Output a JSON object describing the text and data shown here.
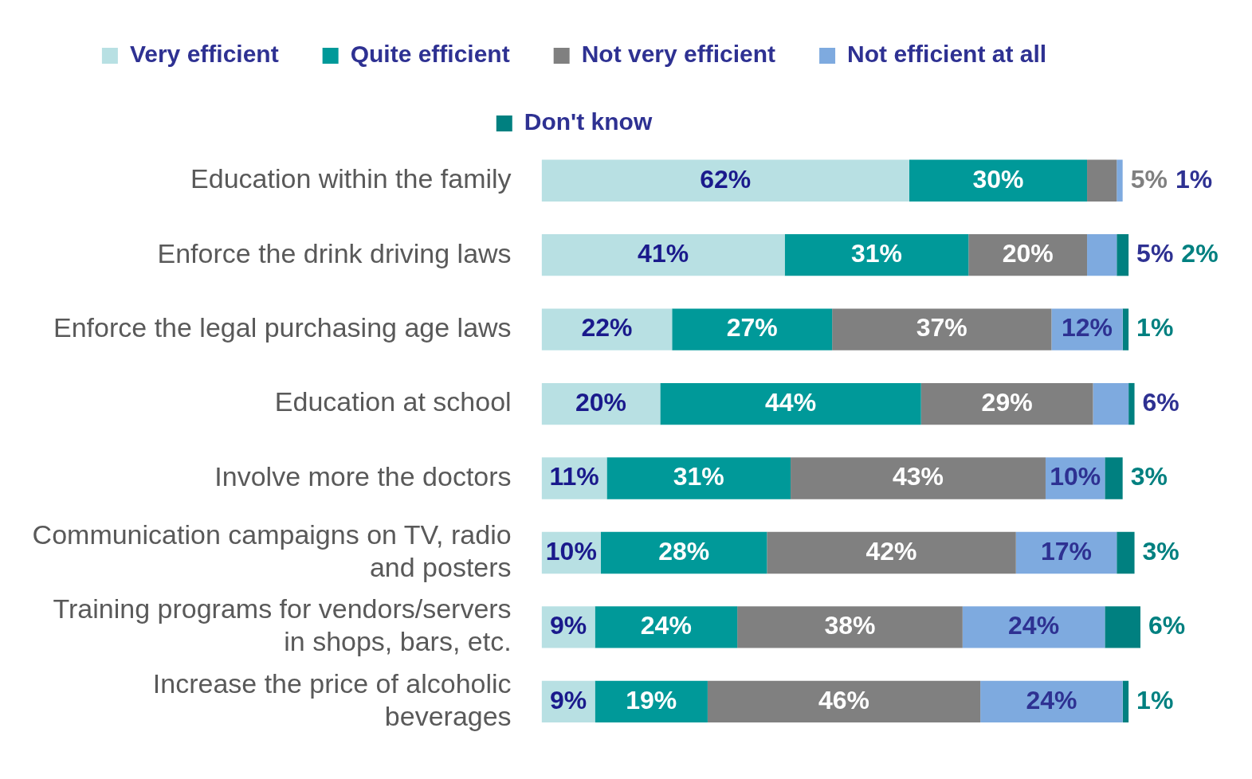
{
  "chart_data": {
    "type": "bar",
    "orientation": "horizontal",
    "stacked": true,
    "legend": "top",
    "xlim": [
      0,
      101
    ],
    "tick_labels": "y",
    "categories": [
      "Education within the family",
      "Enforce the drink driving laws",
      "Enforce the legal purchasing age laws",
      "Education at school",
      "Involve more the doctors",
      "Communication campaigns on TV, radio and posters",
      "Training programs for vendors/servers in shops, bars, etc.",
      "Increase the price of alcoholic beverages"
    ],
    "series": [
      {
        "name": "Very efficient",
        "color": "#b8e0e3",
        "values": [
          62,
          41,
          22,
          20,
          11,
          10,
          9,
          9
        ],
        "value_labels": [
          "62%",
          "41%",
          "22%",
          "20%",
          "11%",
          "10%",
          "9%",
          "9%"
        ]
      },
      {
        "name": "Quite efficient",
        "color": "#009999",
        "values": [
          30,
          31,
          27,
          44,
          31,
          28,
          24,
          19
        ],
        "value_labels": [
          "30%",
          "31%",
          "27%",
          "44%",
          "31%",
          "28%",
          "24%",
          "19%"
        ]
      },
      {
        "name": "Not very efficient",
        "color": "#808080",
        "values": [
          5,
          20,
          37,
          29,
          43,
          42,
          38,
          46
        ],
        "value_labels": [
          "5%",
          "20%",
          "37%",
          "29%",
          "43%",
          "42%",
          "38%",
          "46%"
        ]
      },
      {
        "name": "Not efficient at all",
        "color": "#7eaadf",
        "values": [
          1,
          5,
          12,
          6,
          10,
          17,
          24,
          24
        ],
        "value_labels": [
          "1%",
          "5%",
          "12%",
          "6%",
          "10%",
          "17%",
          "24%",
          "24%"
        ]
      },
      {
        "name": "Don't know",
        "color": "#008080",
        "values": [
          null,
          2,
          1,
          1,
          3,
          3,
          6,
          1
        ],
        "value_labels": [
          null,
          "2%",
          "1%",
          null,
          "3%",
          "3%",
          "6%",
          "1%"
        ]
      }
    ]
  }
}
